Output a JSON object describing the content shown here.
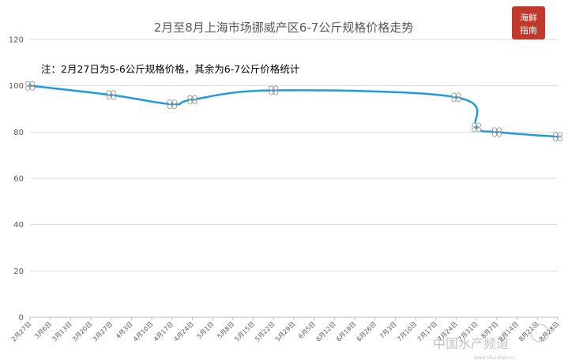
{
  "chart_data": {
    "type": "line",
    "title": "2月至8月上海市场挪威产区6-7公斤规格价格走势",
    "annotation": "注：2月27日为5-6公斤规格价格，其余为6-7公斤价格统计",
    "ylim": [
      0,
      120
    ],
    "yticks": [
      0,
      20,
      40,
      60,
      80,
      100,
      120
    ],
    "grid": true,
    "legend": "none",
    "line_color": "#1f9bde",
    "categories": [
      "2月27日",
      "3月6日",
      "3月13日",
      "3月20日",
      "3月27日",
      "4月3日",
      "4月10日",
      "4月17日",
      "4月24日",
      "5月1日",
      "5月8日",
      "5月15日",
      "5月22日",
      "5月29日",
      "6月5日",
      "6月12日",
      "6月19日",
      "6月26日",
      "7月3日",
      "7月10日",
      "7月17日",
      "7月24日",
      "7月31日",
      "8月7日",
      "8月14日",
      "8月21日",
      "8月28日"
    ],
    "points": [
      {
        "index": 0,
        "value": 100
      },
      {
        "index": 4,
        "value": 96
      },
      {
        "index": 7,
        "value": 92
      },
      {
        "index": 8,
        "value": 94
      },
      {
        "index": 12,
        "value": 98
      },
      {
        "index": 21,
        "value": 95
      },
      {
        "index": 22,
        "value": 82
      },
      {
        "index": 23,
        "value": 80
      },
      {
        "index": 26,
        "value": 78
      }
    ]
  },
  "logo": {
    "line1": "海鲜",
    "line2": "指南"
  },
  "watermark": {
    "main": "中国水产频道",
    "sub": "www.shuichan.cc"
  }
}
